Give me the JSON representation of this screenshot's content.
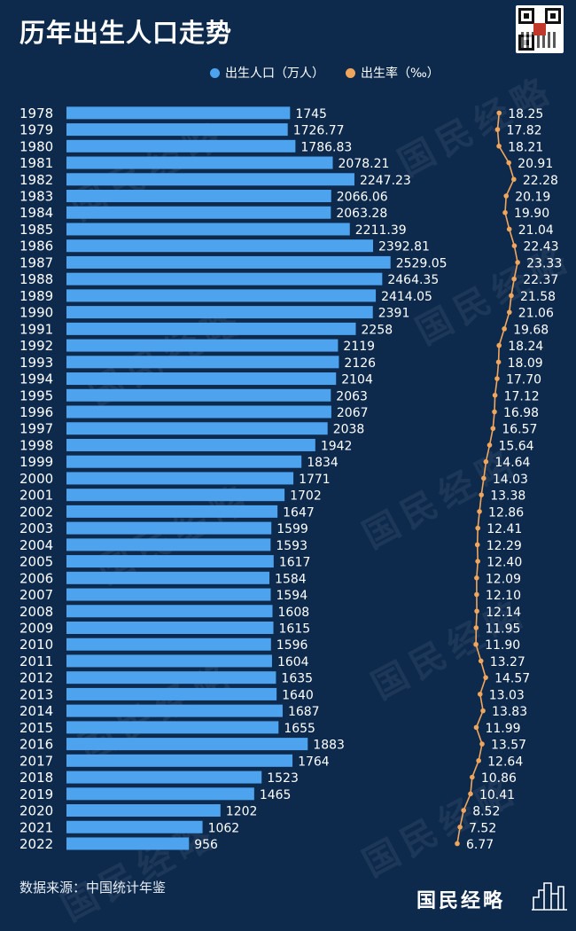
{
  "header": {
    "title": "历年出生人口走势"
  },
  "legend": [
    {
      "label": "出生人口（万人）",
      "color": "#4ea3ef"
    },
    {
      "label": "出生率（‰）",
      "color": "#f0a65c"
    }
  ],
  "footer": {
    "source": "数据来源：中国统计年鉴",
    "brand": "国民经略"
  },
  "watermark": "国民经略",
  "colors": {
    "background": "#0d2a4d",
    "bar": "#4ea3ef",
    "line": "#f0a65c",
    "text": "#ffffff"
  },
  "chart_data": {
    "type": "bar",
    "orientation": "horizontal",
    "categories": [
      "1978",
      "1979",
      "1980",
      "1981",
      "1982",
      "1983",
      "1984",
      "1985",
      "1986",
      "1987",
      "1988",
      "1989",
      "1990",
      "1991",
      "1992",
      "1993",
      "1994",
      "1995",
      "1996",
      "1997",
      "1998",
      "1999",
      "2000",
      "2001",
      "2002",
      "2003",
      "2004",
      "2005",
      "2006",
      "2007",
      "2008",
      "2009",
      "2010",
      "2011",
      "2012",
      "2013",
      "2014",
      "2015",
      "2016",
      "2017",
      "2018",
      "2019",
      "2020",
      "2021",
      "2022"
    ],
    "series": [
      {
        "name": "出生人口（万人）",
        "type": "bar",
        "values": [
          1745,
          1726.77,
          1786.83,
          2078.21,
          2247.23,
          2066.06,
          2063.28,
          2211.39,
          2392.81,
          2529.05,
          2464.35,
          2414.05,
          2391,
          2258,
          2119,
          2126,
          2104,
          2063,
          2067,
          2038,
          1942,
          1834,
          1771,
          1702,
          1647,
          1599,
          1593,
          1617,
          1584,
          1594,
          1608,
          1615,
          1596,
          1604,
          1635,
          1640,
          1687,
          1655,
          1883,
          1764,
          1523,
          1465,
          1202,
          1062,
          956
        ],
        "labels": [
          "1745",
          "1726.77",
          "1786.83",
          "2078.21",
          "2247.23",
          "2066.06",
          "2063.28",
          "2211.39",
          "2392.81",
          "2529.05",
          "2464.35",
          "2414.05",
          "2391",
          "2258",
          "2119",
          "2126",
          "2104",
          "2063",
          "2067",
          "2038",
          "1942",
          "1834",
          "1771",
          "1702",
          "1647",
          "1599",
          "1593",
          "1617",
          "1584",
          "1594",
          "1608",
          "1615",
          "1596",
          "1604",
          "1635",
          "1640",
          "1687",
          "1655",
          "1883",
          "1764",
          "1523",
          "1465",
          "1202",
          "1062",
          "956"
        ]
      },
      {
        "name": "出生率（‰）",
        "type": "line",
        "values": [
          18.25,
          17.82,
          18.21,
          20.91,
          22.28,
          20.19,
          19.9,
          21.04,
          22.43,
          23.33,
          22.37,
          21.58,
          21.06,
          19.68,
          18.24,
          18.09,
          17.7,
          17.12,
          16.98,
          16.57,
          15.64,
          14.64,
          14.03,
          13.38,
          12.86,
          12.41,
          12.29,
          12.4,
          12.09,
          12.1,
          12.14,
          11.95,
          11.9,
          13.27,
          14.57,
          13.03,
          13.83,
          11.99,
          13.57,
          12.64,
          10.86,
          10.41,
          8.52,
          7.52,
          6.77
        ],
        "labels": [
          "18.25",
          "17.82",
          "18.21",
          "20.91",
          "22.28",
          "20.19",
          "19.90",
          "21.04",
          "22.43",
          "23.33",
          "22.37",
          "21.58",
          "21.06",
          "19.68",
          "18.24",
          "18.09",
          "17.70",
          "17.12",
          "16.98",
          "16.57",
          "15.64",
          "14.64",
          "14.03",
          "13.38",
          "12.86",
          "12.41",
          "12.29",
          "12.40",
          "12.09",
          "12.10",
          "12.14",
          "11.95",
          "11.90",
          "13.27",
          "14.57",
          "13.03",
          "13.83",
          "11.99",
          "13.57",
          "12.64",
          "10.86",
          "10.41",
          "8.52",
          "7.52",
          "6.77"
        ]
      }
    ],
    "grid": false,
    "legend_position": "top-right"
  }
}
